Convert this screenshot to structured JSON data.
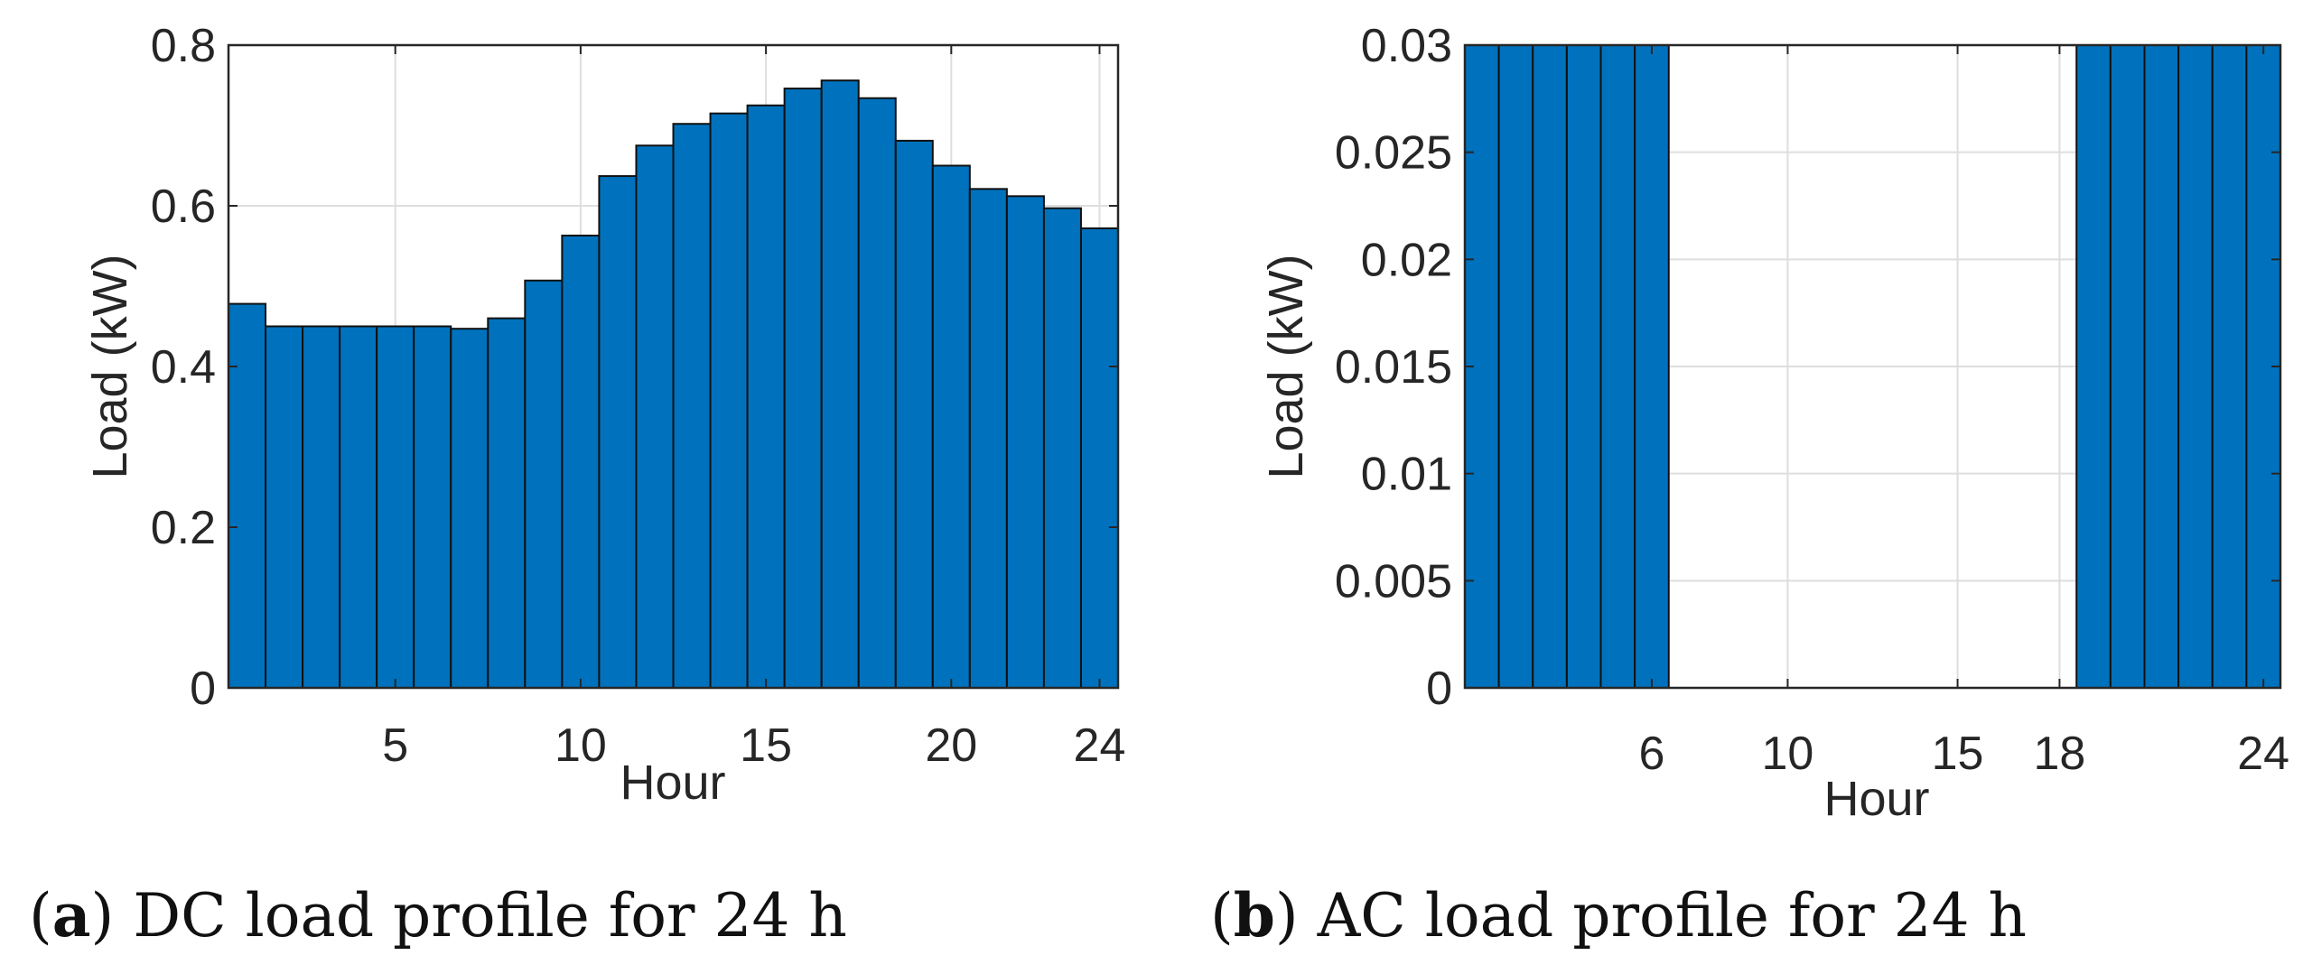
{
  "chart_data": [
    {
      "id": "a",
      "type": "bar",
      "title": "",
      "xlabel": "Hour",
      "ylabel": "Load (kW)",
      "x": [
        1,
        2,
        3,
        4,
        5,
        6,
        7,
        8,
        9,
        10,
        11,
        12,
        13,
        14,
        15,
        16,
        17,
        18,
        19,
        20,
        21,
        22,
        23,
        24
      ],
      "values": [
        0.478,
        0.45,
        0.45,
        0.45,
        0.45,
        0.45,
        0.447,
        0.46,
        0.507,
        0.563,
        0.637,
        0.675,
        0.702,
        0.715,
        0.725,
        0.746,
        0.756,
        0.734,
        0.681,
        0.65,
        0.621,
        0.612,
        0.597,
        0.572
      ],
      "xlim": [
        0.5,
        24.5
      ],
      "ylim": [
        0,
        0.8
      ],
      "xticks": [
        5,
        10,
        15,
        20,
        24
      ],
      "xtick_labels": [
        "5",
        "10",
        "15",
        "20",
        "24"
      ],
      "yticks": [
        0,
        0.2,
        0.4,
        0.6,
        0.8
      ],
      "ytick_labels": [
        "0",
        "0.2",
        "0.4",
        "0.6",
        "0.8"
      ],
      "grid": true,
      "bar_color": "#0072BD",
      "caption_letter": "a",
      "caption_text": ") DC load profile for 24 h"
    },
    {
      "id": "b",
      "type": "bar",
      "title": "",
      "xlabel": "Hour",
      "ylabel": "Load (kW)",
      "x": [
        1,
        2,
        3,
        4,
        5,
        6,
        7,
        8,
        9,
        10,
        11,
        12,
        13,
        14,
        15,
        16,
        17,
        18,
        19,
        20,
        21,
        22,
        23,
        24
      ],
      "values": [
        0.03,
        0.03,
        0.03,
        0.03,
        0.03,
        0.03,
        0,
        0,
        0,
        0,
        0,
        0,
        0,
        0,
        0,
        0,
        0,
        0,
        0.03,
        0.03,
        0.03,
        0.03,
        0.03,
        0.03
      ],
      "xlim": [
        0.5,
        24.5
      ],
      "ylim": [
        0,
        0.03
      ],
      "xticks": [
        6,
        10,
        15,
        18,
        24
      ],
      "xtick_labels": [
        "6",
        "10",
        "15",
        "18",
        "24"
      ],
      "yticks": [
        0,
        0.005,
        0.01,
        0.015,
        0.02,
        0.025,
        0.03
      ],
      "ytick_labels": [
        "0",
        "0.005",
        "0.01",
        "0.015",
        "0.02",
        "0.025",
        "0.03"
      ],
      "grid": true,
      "bar_color": "#0072BD",
      "caption_letter": "b",
      "caption_text": ") AC load profile for 24 h"
    }
  ]
}
